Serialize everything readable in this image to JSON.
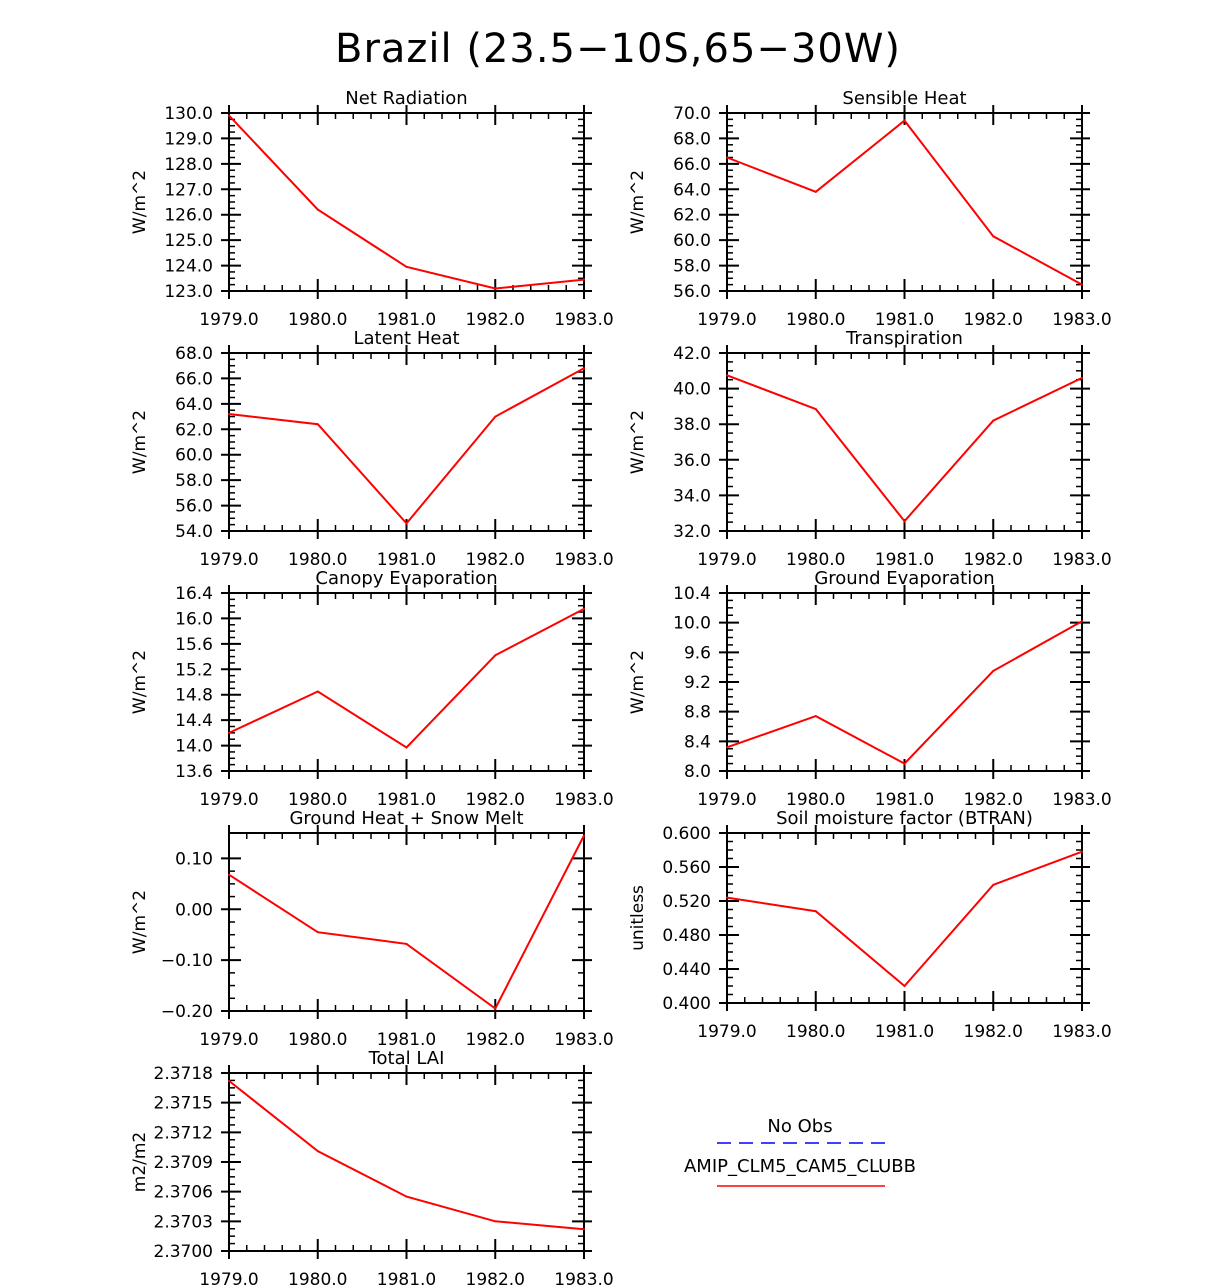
{
  "figure": {
    "title": "Brazil (23.5−10S,65−30W)"
  },
  "colors": {
    "model_line": "#ff0000",
    "obs_line": "#0000ff",
    "axis": "#000000",
    "background": "#ffffff"
  },
  "legend": {
    "entries": [
      {
        "label": "No Obs",
        "color": "#0000ff",
        "style": "dashed"
      },
      {
        "label": "AMIP_CLM5_CAM5_CLUBB",
        "color": "#ff0000",
        "style": "solid"
      }
    ]
  },
  "chart_data": [
    {
      "type": "line",
      "title": "Net Radiation",
      "ylabel": "W/m^2",
      "xlabel": "",
      "x": [
        1979.0,
        1980.0,
        1981.0,
        1982.0,
        1983.0
      ],
      "xlim": [
        1979.0,
        1983.0
      ],
      "xticks": [
        "1979.0",
        "1980.0",
        "1981.0",
        "1982.0",
        "1983.0"
      ],
      "ylim": [
        123.0,
        130.0
      ],
      "yticks": [
        "123.0",
        "124.0",
        "125.0",
        "126.0",
        "127.0",
        "128.0",
        "129.0",
        "130.0"
      ],
      "series": [
        {
          "name": "AMIP_CLM5_CAM5_CLUBB",
          "values": [
            129.9,
            126.2,
            123.95,
            123.1,
            123.45
          ]
        }
      ]
    },
    {
      "type": "line",
      "title": "Sensible Heat",
      "ylabel": "W/m^2",
      "xlabel": "",
      "x": [
        1979.0,
        1980.0,
        1981.0,
        1982.0,
        1983.0
      ],
      "xlim": [
        1979.0,
        1983.0
      ],
      "xticks": [
        "1979.0",
        "1980.0",
        "1981.0",
        "1982.0",
        "1983.0"
      ],
      "ylim": [
        56.0,
        70.0
      ],
      "yticks": [
        "56.0",
        "58.0",
        "60.0",
        "62.0",
        "64.0",
        "66.0",
        "68.0",
        "70.0"
      ],
      "series": [
        {
          "name": "AMIP_CLM5_CAM5_CLUBB",
          "values": [
            66.5,
            63.8,
            69.4,
            60.3,
            56.5
          ]
        }
      ]
    },
    {
      "type": "line",
      "title": "Latent Heat",
      "ylabel": "W/m^2",
      "xlabel": "",
      "x": [
        1979.0,
        1980.0,
        1981.0,
        1982.0,
        1983.0
      ],
      "xlim": [
        1979.0,
        1983.0
      ],
      "xticks": [
        "1979.0",
        "1980.0",
        "1981.0",
        "1982.0",
        "1983.0"
      ],
      "ylim": [
        54.0,
        68.0
      ],
      "yticks": [
        "54.0",
        "56.0",
        "58.0",
        "60.0",
        "62.0",
        "64.0",
        "66.0",
        "68.0"
      ],
      "series": [
        {
          "name": "AMIP_CLM5_CAM5_CLUBB",
          "values": [
            63.2,
            62.4,
            54.6,
            63.0,
            66.8
          ]
        }
      ]
    },
    {
      "type": "line",
      "title": "Transpiration",
      "ylabel": "W/m^2",
      "xlabel": "",
      "x": [
        1979.0,
        1980.0,
        1981.0,
        1982.0,
        1983.0
      ],
      "xlim": [
        1979.0,
        1983.0
      ],
      "xticks": [
        "1979.0",
        "1980.0",
        "1981.0",
        "1982.0",
        "1983.0"
      ],
      "ylim": [
        32.0,
        42.0
      ],
      "yticks": [
        "32.0",
        "34.0",
        "36.0",
        "38.0",
        "40.0",
        "42.0"
      ],
      "series": [
        {
          "name": "AMIP_CLM5_CAM5_CLUBB",
          "values": [
            40.75,
            38.85,
            32.55,
            38.2,
            40.6
          ]
        }
      ]
    },
    {
      "type": "line",
      "title": "Canopy Evaporation",
      "ylabel": "W/m^2",
      "xlabel": "",
      "x": [
        1979.0,
        1980.0,
        1981.0,
        1982.0,
        1983.0
      ],
      "xlim": [
        1979.0,
        1983.0
      ],
      "xticks": [
        "1979.0",
        "1980.0",
        "1981.0",
        "1982.0",
        "1983.0"
      ],
      "ylim": [
        13.6,
        16.4
      ],
      "yticks": [
        "13.6",
        "14.0",
        "14.4",
        "14.8",
        "15.2",
        "15.6",
        "16.0",
        "16.4"
      ],
      "series": [
        {
          "name": "AMIP_CLM5_CAM5_CLUBB",
          "values": [
            14.2,
            14.85,
            13.97,
            15.42,
            16.15
          ]
        }
      ]
    },
    {
      "type": "line",
      "title": "Ground Evaporation",
      "ylabel": "W/m^2",
      "xlabel": "",
      "x": [
        1979.0,
        1980.0,
        1981.0,
        1982.0,
        1983.0
      ],
      "xlim": [
        1979.0,
        1983.0
      ],
      "xticks": [
        "1979.0",
        "1980.0",
        "1981.0",
        "1982.0",
        "1983.0"
      ],
      "ylim": [
        8.0,
        10.4
      ],
      "yticks": [
        "8.0",
        "8.4",
        "8.8",
        "9.2",
        "9.6",
        "10.0",
        "10.4"
      ],
      "series": [
        {
          "name": "AMIP_CLM5_CAM5_CLUBB",
          "values": [
            8.32,
            8.74,
            8.1,
            9.35,
            10.02
          ]
        }
      ]
    },
    {
      "type": "line",
      "title": "Ground Heat + Snow Melt",
      "ylabel": "W/m^2",
      "xlabel": "",
      "x": [
        1979.0,
        1980.0,
        1981.0,
        1982.0,
        1983.0
      ],
      "xlim": [
        1979.0,
        1983.0
      ],
      "xticks": [
        "1979.0",
        "1980.0",
        "1981.0",
        "1982.0",
        "1983.0"
      ],
      "ylim": [
        -0.2,
        0.15
      ],
      "yticks": [
        "−0.20",
        "−0.10",
        "0.00",
        "0.10"
      ],
      "ytick_values": [
        -0.2,
        -0.1,
        0.0,
        0.1
      ],
      "series": [
        {
          "name": "AMIP_CLM5_CAM5_CLUBB",
          "values": [
            0.068,
            -0.045,
            -0.068,
            -0.195,
            0.145
          ]
        }
      ]
    },
    {
      "type": "line",
      "title": "Soil moisture factor (BTRAN)",
      "ylabel": "unitless",
      "xlabel": "",
      "x": [
        1979.0,
        1980.0,
        1981.0,
        1982.0,
        1983.0
      ],
      "xlim": [
        1979.0,
        1983.0
      ],
      "xticks": [
        "1979.0",
        "1980.0",
        "1981.0",
        "1982.0",
        "1983.0"
      ],
      "ylim": [
        0.4,
        0.6
      ],
      "yticks": [
        "0.400",
        "0.440",
        "0.480",
        "0.520",
        "0.560",
        "0.600"
      ],
      "series": [
        {
          "name": "AMIP_CLM5_CAM5_CLUBB",
          "values": [
            0.524,
            0.508,
            0.42,
            0.539,
            0.578
          ]
        }
      ]
    },
    {
      "type": "line",
      "title": "Total LAI",
      "ylabel": "m2/m2",
      "xlabel": "",
      "x": [
        1979.0,
        1980.0,
        1981.0,
        1982.0,
        1983.0
      ],
      "xlim": [
        1979.0,
        1983.0
      ],
      "xticks": [
        "1979.0",
        "1980.0",
        "1981.0",
        "1982.0",
        "1983.0"
      ],
      "ylim": [
        2.37,
        2.3718
      ],
      "yticks": [
        "2.3700",
        "2.3703",
        "2.3706",
        "2.3709",
        "2.3712",
        "2.3715",
        "2.3718"
      ],
      "series": [
        {
          "name": "AMIP_CLM5_CAM5_CLUBB",
          "values": [
            2.37172,
            2.37101,
            2.37055,
            2.3703,
            2.37022
          ]
        }
      ]
    }
  ]
}
